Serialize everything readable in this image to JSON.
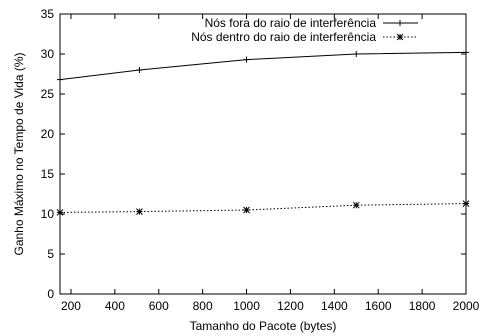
{
  "chart_data": {
    "type": "line",
    "xlabel": "Tamanho do Pacote (bytes)",
    "ylabel": "Ganho Máximo no Tempo de Vida (%)",
    "xlim": [
      150,
      2000
    ],
    "ylim": [
      0,
      35
    ],
    "xticks": [
      200,
      400,
      600,
      800,
      1000,
      1200,
      1400,
      1600,
      1800,
      2000
    ],
    "yticks": [
      0,
      5,
      10,
      15,
      20,
      25,
      30,
      35
    ],
    "grid": false,
    "legend_position": "top-right",
    "series": [
      {
        "name": "Nós fora do raio de interferência",
        "x": [
          150,
          512,
          1000,
          1500,
          2000
        ],
        "y": [
          26.8,
          28.0,
          29.3,
          30.0,
          30.2
        ],
        "line_style": "solid",
        "marker": "plus",
        "color": "#000000"
      },
      {
        "name": "Nós dentro do raio de interferência",
        "x": [
          150,
          512,
          1000,
          1500,
          2000
        ],
        "y": [
          10.2,
          10.3,
          10.5,
          11.1,
          11.3
        ],
        "line_style": "dotted",
        "marker": "star",
        "color": "#000000"
      }
    ]
  }
}
